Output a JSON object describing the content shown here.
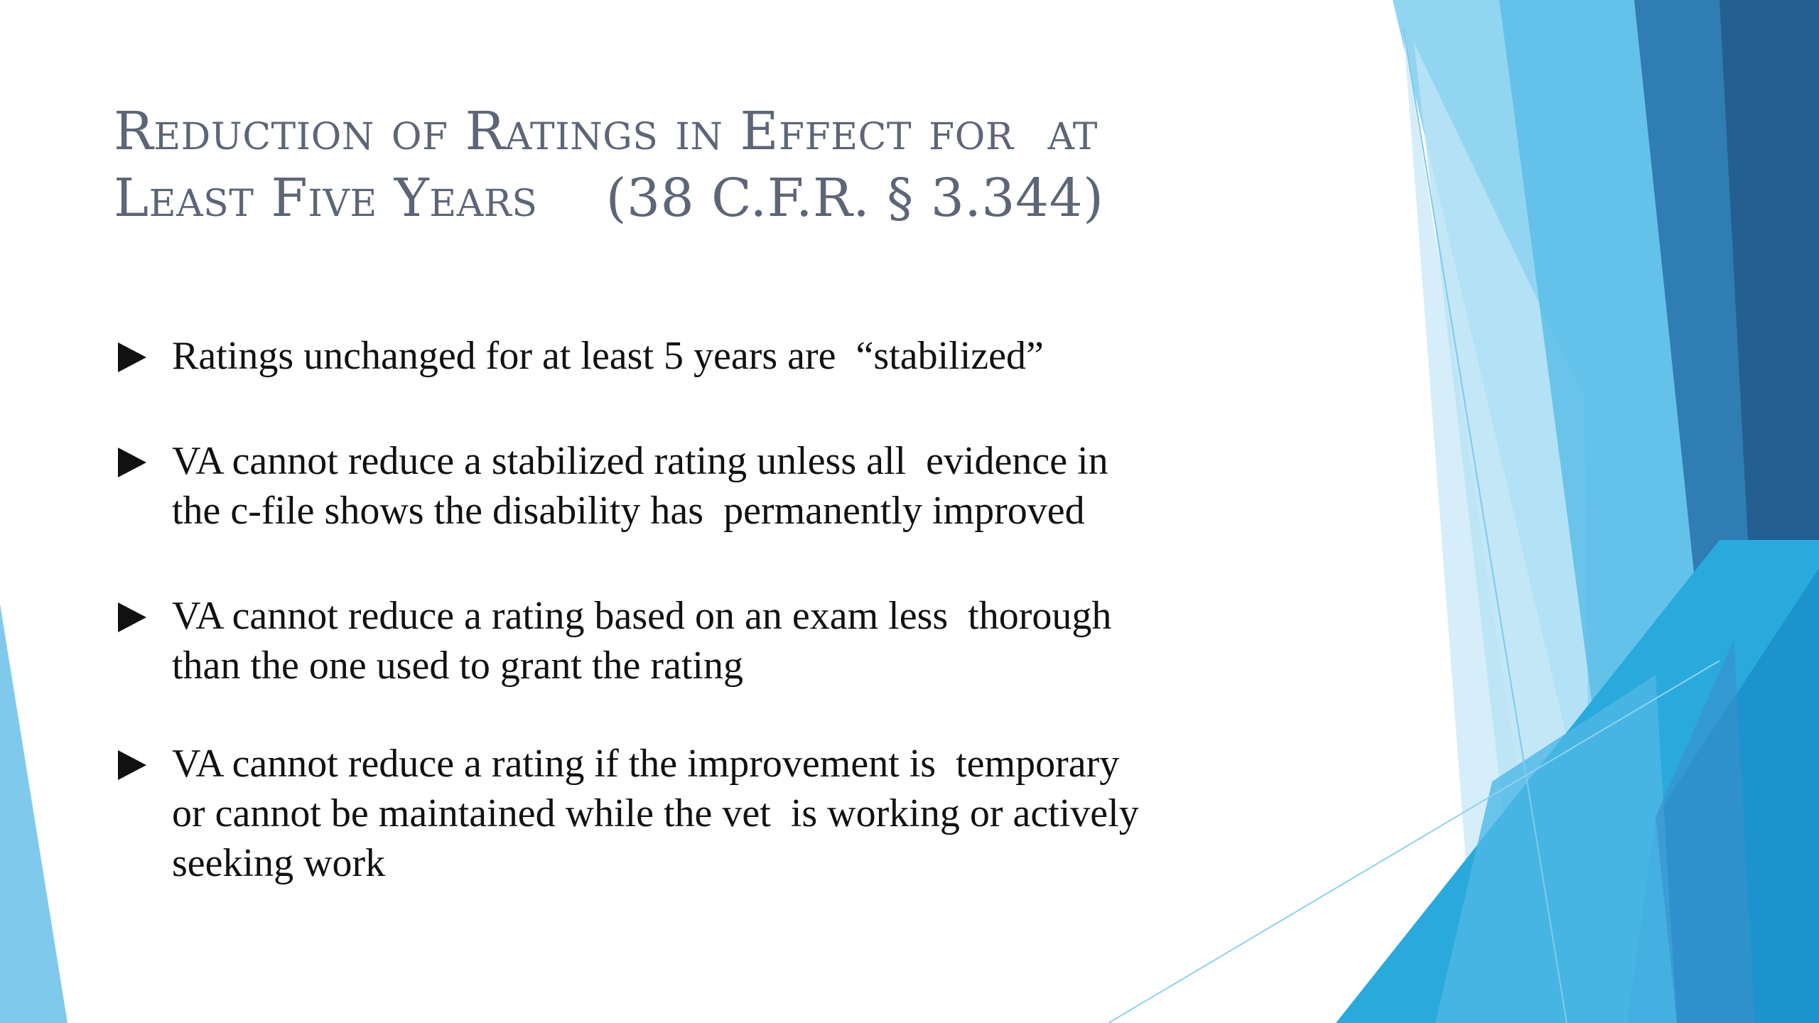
{
  "slide": {
    "title_lines": [
      "Reduction of Ratings in Effect for  at",
      "Least Five Years    (38 C.F.R. § 3.344)"
    ],
    "bullets": [
      {
        "lines": [
          "Ratings unchanged for at least 5 years are  “stabilized”"
        ]
      },
      {
        "lines": [
          "VA cannot reduce a stabilized rating unless all  evidence in",
          "the c-file shows the disability has  permanently improved"
        ]
      },
      {
        "lines": [
          "VA cannot reduce a rating based on an exam less  thorough",
          "than the one used to grant the rating"
        ]
      },
      {
        "lines": [
          "VA cannot reduce a rating if the improvement is  temporary",
          "or cannot be maintained while the vet  is working or actively",
          "seeking work"
        ]
      }
    ],
    "bullet_icon": "play-arrow-icon"
  },
  "theme": {
    "title_color": "#5d6577",
    "text_color": "#111111",
    "accent_light": "#8fd2ee",
    "accent_mid": "#3db4e4",
    "accent_dark": "#2a6ea3"
  }
}
